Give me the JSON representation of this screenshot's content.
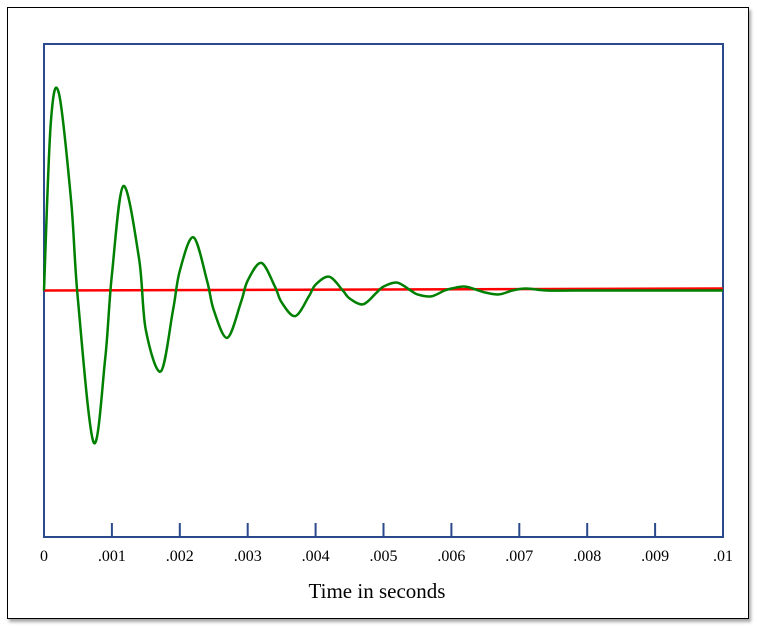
{
  "chart_data": {
    "type": "line",
    "title": "",
    "xlabel": "Time in seconds",
    "ylabel": "",
    "xlim": [
      0,
      0.01
    ],
    "ylim": [
      -1.25,
      1.25
    ],
    "grid": false,
    "x_ticks": [
      0,
      0.001,
      0.002,
      0.003,
      0.004,
      0.005,
      0.006,
      0.007,
      0.008,
      0.009,
      0.01
    ],
    "x_tick_labels": [
      "0",
      ".001",
      ".002",
      ".003",
      ".004",
      ".005",
      ".006",
      ".007",
      ".008",
      ".009",
      ".01"
    ],
    "series": [
      {
        "color": "#008000",
        "x": [
          0,
          0.0001,
          0.00022,
          0.0004,
          0.0005,
          0.00073,
          0.0009,
          0.001,
          0.00117,
          0.0014,
          0.0015,
          0.00172,
          0.0019,
          0.002,
          0.0022,
          0.0024,
          0.0025,
          0.0027,
          0.0029,
          0.003,
          0.0032,
          0.0034,
          0.0035,
          0.0037,
          0.0039,
          0.004,
          0.0042,
          0.0044,
          0.0045,
          0.0047,
          0.0049,
          0.005,
          0.0052,
          0.0054,
          0.0055,
          0.0057,
          0.0059,
          0.006,
          0.0062,
          0.0064,
          0.0065,
          0.0067,
          0.0069,
          0.0071,
          0.0074,
          0.0078,
          0.0085,
          0.01
        ],
        "values": [
          0,
          0.85,
          1.0,
          0.45,
          -0.05,
          -0.77,
          -0.35,
          0.08,
          0.53,
          0.16,
          -0.2,
          -0.41,
          -0.1,
          0.1,
          0.27,
          0.05,
          -0.1,
          -0.24,
          -0.06,
          0.05,
          0.14,
          0.02,
          -0.06,
          -0.13,
          -0.03,
          0.03,
          0.07,
          0.0,
          -0.04,
          -0.07,
          -0.01,
          0.02,
          0.04,
          0.0,
          -0.02,
          -0.03,
          0.0,
          0.01,
          0.02,
          0.0,
          -0.01,
          -0.02,
          0.0,
          0.01,
          0.0,
          0.0,
          0.0,
          0.0
        ]
      },
      {
        "color": "#ff0000",
        "x": [
          0,
          0.01
        ],
        "values": [
          0,
          0.01
        ]
      }
    ]
  }
}
